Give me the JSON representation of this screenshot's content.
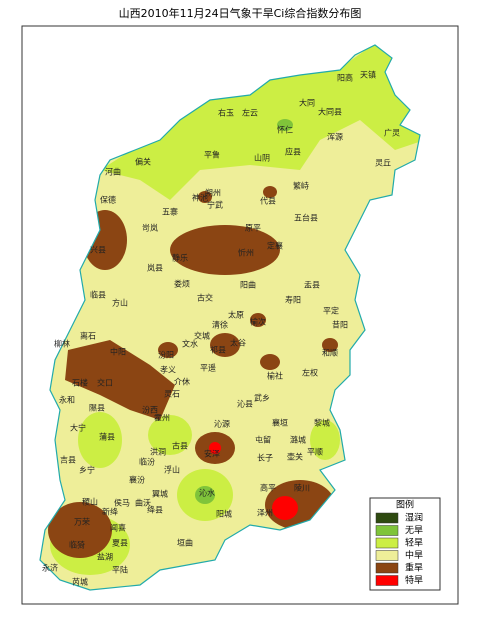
{
  "title": "山西2010年11月24日气象干旱Ci综合指数分布图",
  "map": {
    "labels": [
      "阳高",
      "天镇",
      "大同",
      "大同县",
      "右玉",
      "左云",
      "怀仁",
      "浑源",
      "广灵",
      "平鲁",
      "山阴",
      "应县",
      "灵丘",
      "河曲",
      "偏关",
      "朔州",
      "繁峙",
      "保德",
      "神池",
      "宁武",
      "代县",
      "五台县",
      "五寨",
      "原平",
      "岢岚",
      "兴县",
      "静乐",
      "忻州",
      "定襄",
      "岚县",
      "盂县",
      "娄烦",
      "阳曲",
      "临县",
      "方山",
      "古交",
      "寿阳",
      "平定",
      "太原",
      "清徐",
      "昔阳",
      "榆次",
      "交城",
      "文水",
      "离石",
      "柳林",
      "中阳",
      "汾阳",
      "孝义",
      "祁县",
      "太谷",
      "和顺",
      "平遥",
      "榆社",
      "左权",
      "石楼",
      "交口",
      "介休",
      "灵石",
      "武乡",
      "沁县",
      "永和",
      "隰县",
      "汾西",
      "霍州",
      "沁源",
      "襄垣",
      "黎城",
      "大宁",
      "蒲县",
      "古县",
      "屯留",
      "潞城",
      "吉县",
      "洪洞",
      "安泽",
      "长子",
      "壶关",
      "平顺",
      "乡宁",
      "临汾",
      "浮山",
      "高平",
      "陵川",
      "襄汾",
      "翼城",
      "沁水",
      "侯马",
      "新绛",
      "曲沃",
      "泽州",
      "稷山",
      "绛县",
      "阳城",
      "万荣",
      "闻喜",
      "临猗",
      "夏县",
      "垣曲",
      "盐湖",
      "永济",
      "平陆",
      "芮城"
    ]
  },
  "legend": {
    "title": "图例",
    "items": [
      {
        "label": "湿润",
        "color": "#2e4a10"
      },
      {
        "label": "无旱",
        "color": "#7fc43a"
      },
      {
        "label": "轻旱",
        "color": "#ccee44"
      },
      {
        "label": "中旱",
        "color": "#eeee99"
      },
      {
        "label": "重旱",
        "color": "#8b4513"
      },
      {
        "label": "特旱",
        "color": "#ff0000"
      }
    ]
  }
}
